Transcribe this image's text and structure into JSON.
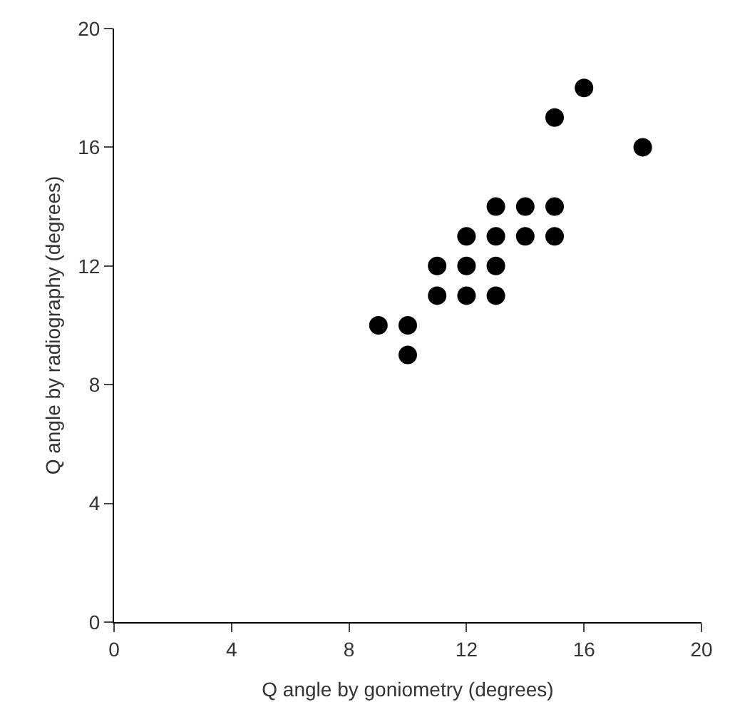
{
  "chart_data": {
    "type": "scatter",
    "xlabel": "Q angle by goniometry (degrees)",
    "ylabel": "Q angle by radiography (degrees)",
    "x": [
      9,
      10,
      10,
      11,
      11,
      12,
      12,
      12,
      13,
      13,
      13,
      13,
      14,
      14,
      15,
      15,
      15,
      16,
      18
    ],
    "values": [
      10,
      10,
      9,
      12,
      11,
      13,
      12,
      11,
      14,
      13,
      12,
      11,
      14,
      13,
      17,
      14,
      13,
      18,
      16
    ],
    "color": "#000000",
    "marker": "circle",
    "grid": false,
    "xlim": [
      0,
      20
    ],
    "xticks": [
      0,
      4,
      8,
      12,
      16,
      20
    ],
    "ylim": [
      0,
      20
    ],
    "yticks": [
      0,
      4,
      8,
      12,
      16,
      20
    ]
  }
}
